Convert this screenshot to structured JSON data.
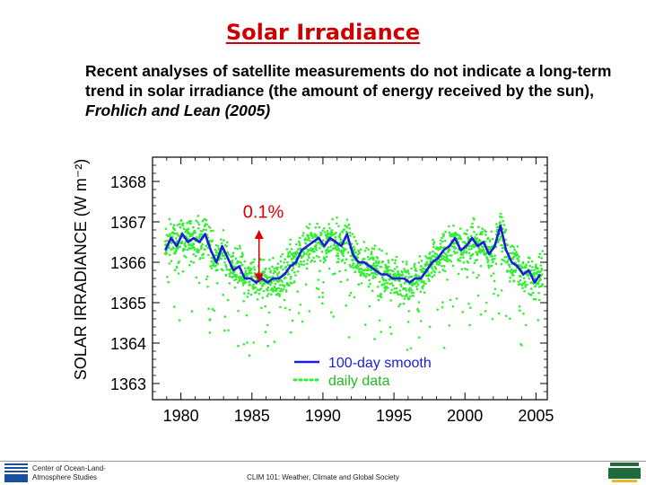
{
  "slide": {
    "title": "Solar Irradiance",
    "body_main": "Recent analyses of satellite measurements do not indicate a long-term trend in solar irradiance (the amount of energy received by the sun), ",
    "body_citation": "Frohlich and Lean (2005)"
  },
  "footer": {
    "org_line1": "Center of Ocean-Land-",
    "org_line2": "Atmosphere Studies",
    "course": "CLIM 101: Weather, Climate and Global Society",
    "left_logo": "cola-logo",
    "right_logo": "mason-logo"
  },
  "colors": {
    "title": "#cc0000",
    "smooth": "#1c1ce0",
    "daily": "#33ee33",
    "arrow": "#dd0000"
  },
  "chart_data": {
    "type": "line",
    "ylabel": "SOLAR IRRADIANCE (W m⁻²)",
    "xlabel": "",
    "xlim": [
      1978,
      2005.8
    ],
    "ylim": [
      1362.6,
      1368.6
    ],
    "x_ticks": [
      1980,
      1985,
      1990,
      1995,
      2000,
      2005
    ],
    "y_ticks": [
      1363,
      1364,
      1365,
      1366,
      1367,
      1368
    ],
    "grid": false,
    "legend_position": "bottom-right",
    "annotations": [
      {
        "text": "0.1%",
        "x": 1985.5,
        "y_from": 1365.5,
        "y_to": 1366.8
      }
    ],
    "series": [
      {
        "name": "100-day smooth",
        "style": "solid",
        "x": [
          1978.9,
          1979.3,
          1979.7,
          1980.1,
          1980.5,
          1980.9,
          1981.3,
          1981.7,
          1982.1,
          1982.5,
          1982.9,
          1983.3,
          1983.7,
          1984.1,
          1984.5,
          1984.9,
          1985.3,
          1985.7,
          1986.1,
          1986.5,
          1986.9,
          1987.3,
          1987.7,
          1988.1,
          1988.5,
          1988.9,
          1989.3,
          1989.7,
          1990.1,
          1990.5,
          1990.9,
          1991.3,
          1991.7,
          1992.1,
          1992.5,
          1992.9,
          1993.3,
          1993.7,
          1994.1,
          1994.5,
          1994.9,
          1995.3,
          1995.7,
          1996.1,
          1996.5,
          1996.9,
          1997.3,
          1997.7,
          1998.1,
          1998.5,
          1998.9,
          1999.3,
          1999.7,
          2000.1,
          2000.5,
          2000.9,
          2001.3,
          2001.7,
          2002.1,
          2002.5,
          2002.9,
          2003.3,
          2003.7,
          2004.1,
          2004.5,
          2004.9,
          2005.3
        ],
        "values": [
          1366.3,
          1366.6,
          1366.4,
          1366.7,
          1366.5,
          1366.6,
          1366.5,
          1366.7,
          1366.3,
          1366.0,
          1366.4,
          1366.1,
          1365.8,
          1365.9,
          1365.6,
          1365.6,
          1365.5,
          1365.6,
          1365.5,
          1365.6,
          1365.6,
          1365.7,
          1365.9,
          1366.0,
          1366.3,
          1366.4,
          1366.5,
          1366.6,
          1366.4,
          1366.6,
          1366.5,
          1366.4,
          1366.7,
          1366.2,
          1366.0,
          1366.0,
          1365.9,
          1365.8,
          1365.7,
          1365.7,
          1365.6,
          1365.6,
          1365.6,
          1365.5,
          1365.6,
          1365.6,
          1365.8,
          1366.0,
          1366.1,
          1366.3,
          1366.4,
          1366.6,
          1366.3,
          1366.4,
          1366.6,
          1366.4,
          1366.5,
          1366.2,
          1366.4,
          1366.9,
          1366.3,
          1366.0,
          1365.9,
          1365.7,
          1365.8,
          1365.5,
          1365.7
        ]
      },
      {
        "name": "daily data",
        "style": "dotted",
        "points": "generated around 100-day smooth"
      }
    ]
  }
}
